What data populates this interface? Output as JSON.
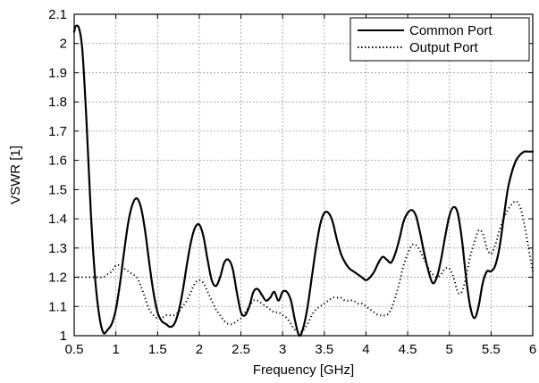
{
  "chart_data": {
    "type": "line",
    "title": "",
    "xlabel": "Frequency [GHz]",
    "ylabel": "VSWR [1]",
    "xlim": [
      0.5,
      6
    ],
    "ylim": [
      1,
      2.1
    ],
    "grid": true,
    "legend_position": "top-right",
    "xticks": [
      "0.5",
      "1",
      "1.5",
      "2",
      "2.5",
      "3",
      "3.5",
      "4",
      "4.5",
      "5",
      "5.5",
      "6"
    ],
    "yticks": [
      "1",
      "1.1",
      "1.2",
      "1.3",
      "1.4",
      "1.5",
      "1.6",
      "1.7",
      "1.8",
      "1.9",
      "2",
      "2.1"
    ],
    "series": [
      {
        "name": "Common Port",
        "style": "solid",
        "color": "#000000",
        "x": [
          0.5,
          0.52,
          0.56,
          0.6,
          0.65,
          0.7,
          0.75,
          0.8,
          0.85,
          0.9,
          0.95,
          1.0,
          1.05,
          1.1,
          1.15,
          1.2,
          1.25,
          1.3,
          1.35,
          1.4,
          1.45,
          1.5,
          1.55,
          1.6,
          1.65,
          1.7,
          1.75,
          1.8,
          1.85,
          1.9,
          1.95,
          2.0,
          2.05,
          2.1,
          2.15,
          2.2,
          2.25,
          2.3,
          2.35,
          2.4,
          2.45,
          2.5,
          2.55,
          2.6,
          2.65,
          2.7,
          2.75,
          2.8,
          2.85,
          2.9,
          2.95,
          3.0,
          3.05,
          3.1,
          3.15,
          3.2,
          3.25,
          3.3,
          3.35,
          3.4,
          3.45,
          3.5,
          3.55,
          3.6,
          3.65,
          3.7,
          3.75,
          3.8,
          3.85,
          3.9,
          3.95,
          4.0,
          4.05,
          4.1,
          4.15,
          4.2,
          4.25,
          4.3,
          4.35,
          4.4,
          4.45,
          4.5,
          4.55,
          4.6,
          4.65,
          4.7,
          4.75,
          4.8,
          4.85,
          4.9,
          4.95,
          5.0,
          5.05,
          5.1,
          5.15,
          5.2,
          5.25,
          5.3,
          5.35,
          5.4,
          5.45,
          5.5,
          5.55,
          5.6,
          5.65,
          5.7,
          5.75,
          5.8,
          5.85,
          5.9,
          5.95,
          6.0
        ],
        "y": [
          2.04,
          2.06,
          2.05,
          1.97,
          1.72,
          1.42,
          1.2,
          1.07,
          1.01,
          1.02,
          1.04,
          1.09,
          1.18,
          1.29,
          1.39,
          1.45,
          1.47,
          1.44,
          1.36,
          1.25,
          1.15,
          1.08,
          1.05,
          1.04,
          1.03,
          1.04,
          1.08,
          1.15,
          1.24,
          1.32,
          1.37,
          1.38,
          1.34,
          1.26,
          1.19,
          1.17,
          1.2,
          1.25,
          1.26,
          1.23,
          1.15,
          1.08,
          1.07,
          1.1,
          1.15,
          1.16,
          1.14,
          1.12,
          1.13,
          1.15,
          1.12,
          1.15,
          1.15,
          1.12,
          1.05,
          1.0,
          1.03,
          1.1,
          1.2,
          1.3,
          1.38,
          1.42,
          1.42,
          1.39,
          1.33,
          1.28,
          1.25,
          1.23,
          1.22,
          1.21,
          1.2,
          1.19,
          1.2,
          1.22,
          1.25,
          1.27,
          1.26,
          1.25,
          1.28,
          1.33,
          1.39,
          1.42,
          1.43,
          1.41,
          1.35,
          1.28,
          1.22,
          1.18,
          1.2,
          1.26,
          1.34,
          1.41,
          1.44,
          1.42,
          1.33,
          1.2,
          1.1,
          1.06,
          1.1,
          1.18,
          1.22,
          1.22,
          1.24,
          1.3,
          1.4,
          1.5,
          1.56,
          1.6,
          1.62,
          1.63,
          1.63,
          1.63
        ],
        "_x_note": "x and y arrays are paired by index"
      },
      {
        "name": "Output Port",
        "style": "dotted",
        "color": "#000000",
        "x": [
          0.5,
          0.6,
          0.7,
          0.8,
          0.85,
          0.9,
          0.95,
          1.0,
          1.05,
          1.1,
          1.15,
          1.2,
          1.25,
          1.3,
          1.35,
          1.4,
          1.45,
          1.5,
          1.55,
          1.6,
          1.65,
          1.7,
          1.75,
          1.8,
          1.85,
          1.9,
          1.95,
          2.0,
          2.05,
          2.1,
          2.15,
          2.2,
          2.25,
          2.3,
          2.35,
          2.4,
          2.45,
          2.5,
          2.55,
          2.6,
          2.65,
          2.7,
          2.75,
          2.8,
          2.85,
          2.9,
          2.95,
          3.0,
          3.05,
          3.1,
          3.15,
          3.2,
          3.25,
          3.3,
          3.35,
          3.4,
          3.45,
          3.5,
          3.55,
          3.6,
          3.65,
          3.7,
          3.75,
          3.8,
          3.85,
          3.9,
          3.95,
          4.0,
          4.05,
          4.1,
          4.15,
          4.2,
          4.25,
          4.3,
          4.35,
          4.4,
          4.45,
          4.5,
          4.55,
          4.6,
          4.65,
          4.7,
          4.75,
          4.8,
          4.85,
          4.9,
          4.95,
          5.0,
          5.05,
          5.1,
          5.15,
          5.2,
          5.25,
          5.3,
          5.35,
          5.4,
          5.45,
          5.5,
          5.55,
          5.6,
          5.65,
          5.7,
          5.75,
          5.8,
          5.85,
          5.9,
          5.95,
          6.0
        ],
        "y": [
          1.2,
          1.2,
          1.2,
          1.2,
          1.2,
          1.21,
          1.22,
          1.24,
          1.24,
          1.23,
          1.22,
          1.21,
          1.2,
          1.17,
          1.13,
          1.09,
          1.07,
          1.06,
          1.06,
          1.07,
          1.07,
          1.07,
          1.08,
          1.1,
          1.12,
          1.15,
          1.18,
          1.19,
          1.18,
          1.15,
          1.12,
          1.09,
          1.07,
          1.05,
          1.04,
          1.04,
          1.05,
          1.06,
          1.08,
          1.1,
          1.12,
          1.12,
          1.11,
          1.1,
          1.09,
          1.08,
          1.08,
          1.07,
          1.06,
          1.04,
          1.02,
          1.01,
          1.02,
          1.04,
          1.07,
          1.09,
          1.1,
          1.11,
          1.12,
          1.13,
          1.13,
          1.13,
          1.12,
          1.12,
          1.12,
          1.11,
          1.11,
          1.1,
          1.09,
          1.08,
          1.07,
          1.07,
          1.07,
          1.09,
          1.13,
          1.18,
          1.24,
          1.28,
          1.31,
          1.31,
          1.29,
          1.26,
          1.23,
          1.21,
          1.2,
          1.21,
          1.23,
          1.23,
          1.2,
          1.15,
          1.15,
          1.2,
          1.27,
          1.32,
          1.36,
          1.35,
          1.3,
          1.28,
          1.31,
          1.36,
          1.4,
          1.43,
          1.45,
          1.46,
          1.44,
          1.38,
          1.3,
          1.22
        ]
      }
    ]
  }
}
